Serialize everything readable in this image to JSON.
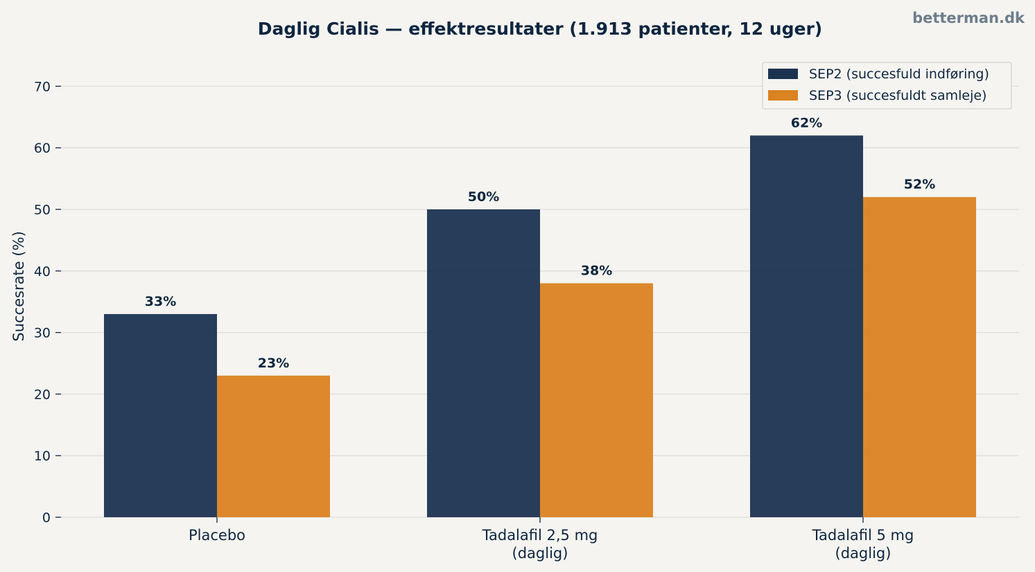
{
  "watermark": "betterman.dk",
  "chart_data": {
    "type": "bar",
    "title": "Daglig Cialis — effektresultater (1.913 patienter, 12 uger)",
    "xlabel": "",
    "ylabel": "Succesrate (%)",
    "ylim": [
      0,
      75
    ],
    "yticks": [
      0,
      10,
      20,
      30,
      40,
      50,
      60,
      70
    ],
    "grid": true,
    "legend_position": "top-right",
    "categories": [
      [
        "Placebo"
      ],
      [
        "Tadalafil 2,5 mg",
        "(daglig)"
      ],
      [
        "Tadalafil 5 mg",
        "(daglig)"
      ]
    ],
    "series": [
      {
        "name": "SEP2 (succesfuld indføring)",
        "color": "#1c3350",
        "values": [
          33,
          50,
          62
        ],
        "labels": [
          "33%",
          "50%",
          "62%"
        ]
      },
      {
        "name": "SEP3 (succesfuldt samleje)",
        "color": "#db8221",
        "values": [
          23,
          38,
          52
        ],
        "labels": [
          "23%",
          "38%",
          "52%"
        ]
      }
    ]
  }
}
